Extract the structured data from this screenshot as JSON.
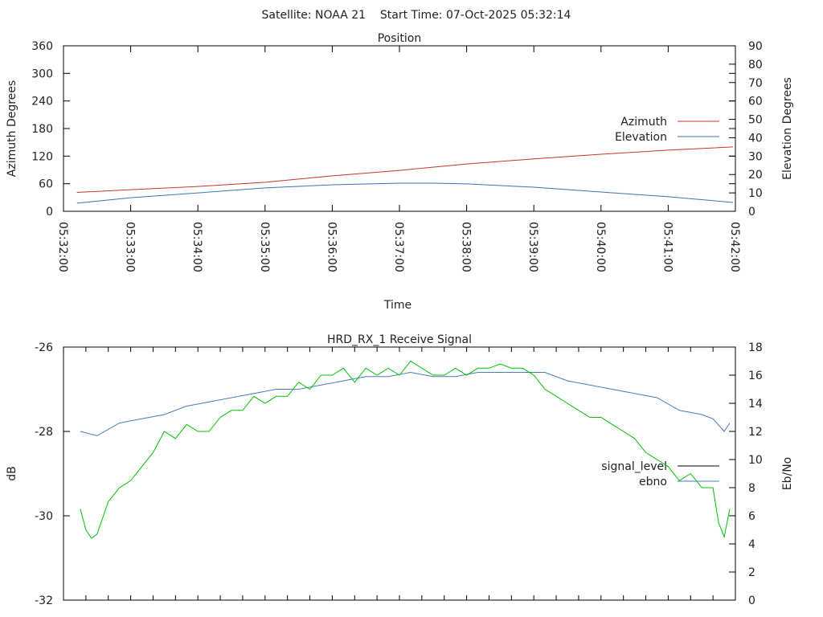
{
  "header": {
    "title": "Satellite: NOAA 21    Start Time: 07-Oct-2025 05:32:14"
  },
  "chart_data": [
    {
      "type": "line",
      "title": "Position",
      "xlabel": "Time",
      "ylabel": "Azimuth Degrees",
      "y2label": "Elevation Degrees",
      "xlim_seconds_from_053200": [
        0,
        600
      ],
      "xticks": [
        "05:32:00",
        "05:33:00",
        "05:34:00",
        "05:35:00",
        "05:36:00",
        "05:37:00",
        "05:38:00",
        "05:39:00",
        "05:40:00",
        "05:41:00",
        "05:42:00"
      ],
      "ylim": [
        0,
        360
      ],
      "yticks": [
        "0",
        "60",
        "120",
        "180",
        "240",
        "300",
        "360"
      ],
      "y2lim": [
        0,
        90
      ],
      "y2ticks": [
        "0",
        "10",
        "20",
        "30",
        "40",
        "50",
        "60",
        "70",
        "80",
        "90"
      ],
      "legend_position": "right",
      "series": [
        {
          "name": "Azimuth",
          "color": "#c0392b",
          "axis": "y",
          "t": [
            12,
            60,
            120,
            180,
            240,
            300,
            360,
            420,
            480,
            540,
            598
          ],
          "values": [
            41,
            47,
            54,
            63,
            77,
            89,
            103,
            114,
            124,
            133,
            140
          ]
        },
        {
          "name": "Elevation",
          "color": "#3f72b5",
          "axis": "y2",
          "t": [
            12,
            60,
            120,
            180,
            240,
            300,
            330,
            360,
            420,
            480,
            540,
            598
          ],
          "values": [
            4.4,
            7.4,
            10,
            12.7,
            14.4,
            15.3,
            15.3,
            14.9,
            13.1,
            10.5,
            7.9,
            4.8
          ]
        }
      ]
    },
    {
      "type": "line",
      "title": "HRD_RX_1 Receive Signal",
      "ylabel": "dB",
      "y2label": "Eb/No",
      "xlim_seconds_from_053200": [
        0,
        600
      ],
      "ylim": [
        -32,
        -26
      ],
      "yticks": [
        "-32",
        "-30",
        "-28",
        "-26"
      ],
      "y2lim": [
        0,
        18
      ],
      "y2ticks": [
        "0",
        "2",
        "4",
        "6",
        "8",
        "10",
        "12",
        "14",
        "16",
        "18"
      ],
      "legend_position": "right",
      "series": [
        {
          "name": "signal_level",
          "color": "#4a7cc0",
          "legend_color": "#000000",
          "axis": "y",
          "t": [
            15,
            30,
            50,
            70,
            90,
            110,
            130,
            150,
            170,
            190,
            210,
            230,
            250,
            270,
            290,
            310,
            330,
            350,
            370,
            390,
            410,
            430,
            450,
            470,
            490,
            510,
            530,
            550,
            570,
            580,
            590,
            595
          ],
          "values": [
            -28.0,
            -28.1,
            -27.8,
            -27.7,
            -27.6,
            -27.4,
            -27.3,
            -27.2,
            -27.1,
            -27.0,
            -27.0,
            -26.9,
            -26.8,
            -26.7,
            -26.7,
            -26.6,
            -26.7,
            -26.7,
            -26.6,
            -26.6,
            -26.6,
            -26.6,
            -26.8,
            -26.9,
            -27.0,
            -27.1,
            -27.2,
            -27.5,
            -27.6,
            -27.7,
            -28.0,
            -27.8
          ]
        },
        {
          "name": "ebno",
          "color": "#00c000",
          "legend_color": "#4a7cc0",
          "axis": "y2",
          "t": [
            15,
            20,
            25,
            30,
            40,
            50,
            60,
            70,
            80,
            90,
            100,
            110,
            120,
            130,
            140,
            150,
            160,
            170,
            180,
            190,
            200,
            210,
            220,
            230,
            240,
            250,
            260,
            270,
            280,
            290,
            300,
            310,
            320,
            330,
            340,
            350,
            360,
            370,
            380,
            390,
            400,
            410,
            420,
            430,
            440,
            450,
            460,
            470,
            480,
            490,
            500,
            510,
            520,
            530,
            540,
            550,
            560,
            570,
            580,
            585,
            590,
            595
          ],
          "values": [
            6.5,
            5.0,
            4.4,
            4.7,
            7.0,
            8.0,
            8.5,
            9.5,
            10.5,
            12.0,
            11.5,
            12.5,
            12.0,
            12.0,
            13.0,
            13.5,
            13.5,
            14.5,
            14.0,
            14.5,
            14.5,
            15.5,
            15.0,
            16.0,
            16.0,
            16.5,
            15.5,
            16.5,
            16.0,
            16.5,
            16.0,
            17.0,
            16.5,
            16.0,
            16.0,
            16.5,
            16.0,
            16.5,
            16.5,
            16.8,
            16.5,
            16.5,
            16.0,
            15.0,
            14.5,
            14.0,
            13.5,
            13.0,
            13.0,
            12.5,
            12.0,
            11.5,
            10.5,
            10.0,
            9.5,
            8.5,
            9.0,
            8.0,
            8.0,
            5.5,
            4.5,
            6.5
          ]
        }
      ]
    }
  ]
}
